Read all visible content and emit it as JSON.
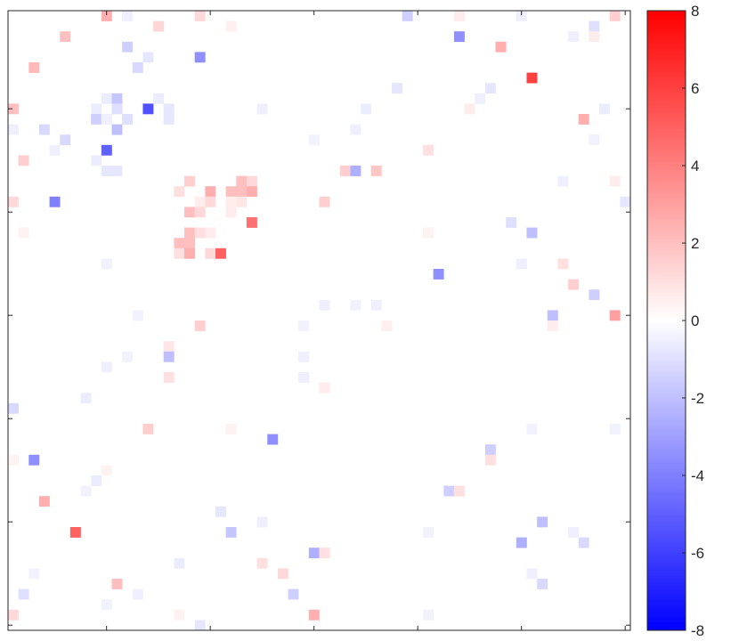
{
  "chart_data": {
    "type": "heatmap",
    "title": "",
    "xlabel": "",
    "ylabel": "",
    "grid": false,
    "rows": 60,
    "cols": 60,
    "color_scale": {
      "min": -8,
      "max": 8,
      "low_color": "#0000ff",
      "mid_color": "#ffffff",
      "high_color": "#ff0000",
      "ticks": [
        8,
        6,
        4,
        2,
        0,
        -2,
        -4,
        -6,
        -8
      ],
      "tick_labels": [
        "8",
        "6",
        "4",
        "2",
        "0",
        "-2",
        "-4",
        "-6",
        "-8"
      ]
    },
    "x_tick_positions": [
      10,
      20,
      30,
      40,
      50,
      60
    ],
    "y_tick_positions": [
      10,
      20,
      30,
      40,
      50,
      60
    ],
    "cells": [
      {
        "row": 1,
        "col": 10,
        "value": 2.5
      },
      {
        "row": 1,
        "col": 12,
        "value": -0.5
      },
      {
        "row": 1,
        "col": 19,
        "value": 1.2
      },
      {
        "row": 1,
        "col": 39,
        "value": -1.5
      },
      {
        "row": 1,
        "col": 44,
        "value": 0.6
      },
      {
        "row": 1,
        "col": 50,
        "value": -0.5
      },
      {
        "row": 1,
        "col": 59,
        "value": 1.5
      },
      {
        "row": 2,
        "col": 15,
        "value": 1.3
      },
      {
        "row": 2,
        "col": 22,
        "value": 0.5
      },
      {
        "row": 2,
        "col": 57,
        "value": -1.0
      },
      {
        "row": 3,
        "col": 6,
        "value": 2.0
      },
      {
        "row": 3,
        "col": 44,
        "value": -3.5
      },
      {
        "row": 3,
        "col": 55,
        "value": -0.5
      },
      {
        "row": 3,
        "col": 57,
        "value": 0.6
      },
      {
        "row": 4,
        "col": 12,
        "value": -1.5
      },
      {
        "row": 4,
        "col": 48,
        "value": 2.5
      },
      {
        "row": 5,
        "col": 14,
        "value": -0.8
      },
      {
        "row": 5,
        "col": 19,
        "value": -3.5
      },
      {
        "row": 6,
        "col": 3,
        "value": 2.2
      },
      {
        "row": 6,
        "col": 13,
        "value": -1.2
      },
      {
        "row": 7,
        "col": 51,
        "value": 6.0
      },
      {
        "row": 8,
        "col": 38,
        "value": -0.8
      },
      {
        "row": 8,
        "col": 47,
        "value": -0.8
      },
      {
        "row": 9,
        "col": 10,
        "value": -0.6
      },
      {
        "row": 9,
        "col": 11,
        "value": -1.8
      },
      {
        "row": 9,
        "col": 15,
        "value": -0.6
      },
      {
        "row": 9,
        "col": 46,
        "value": -0.5
      },
      {
        "row": 10,
        "col": 1,
        "value": 2.0
      },
      {
        "row": 10,
        "col": 9,
        "value": -0.6
      },
      {
        "row": 10,
        "col": 11,
        "value": -1.0
      },
      {
        "row": 10,
        "col": 14,
        "value": -5.5
      },
      {
        "row": 10,
        "col": 16,
        "value": -0.8
      },
      {
        "row": 10,
        "col": 25,
        "value": -0.5
      },
      {
        "row": 10,
        "col": 35,
        "value": -0.6
      },
      {
        "row": 10,
        "col": 45,
        "value": 0.6
      },
      {
        "row": 10,
        "col": 58,
        "value": -0.6
      },
      {
        "row": 11,
        "col": 9,
        "value": -1.5
      },
      {
        "row": 11,
        "col": 10,
        "value": -0.5
      },
      {
        "row": 11,
        "col": 12,
        "value": -1.0
      },
      {
        "row": 11,
        "col": 16,
        "value": -0.8
      },
      {
        "row": 11,
        "col": 56,
        "value": 2.5
      },
      {
        "row": 12,
        "col": 1,
        "value": -0.5
      },
      {
        "row": 12,
        "col": 4,
        "value": -1.2
      },
      {
        "row": 12,
        "col": 11,
        "value": -2.0
      },
      {
        "row": 12,
        "col": 34,
        "value": -0.5
      },
      {
        "row": 13,
        "col": 6,
        "value": -1.2
      },
      {
        "row": 13,
        "col": 30,
        "value": -0.4
      },
      {
        "row": 13,
        "col": 57,
        "value": -0.4
      },
      {
        "row": 14,
        "col": 5,
        "value": -0.5
      },
      {
        "row": 14,
        "col": 10,
        "value": -5.0
      },
      {
        "row": 14,
        "col": 41,
        "value": 1.0
      },
      {
        "row": 15,
        "col": 2,
        "value": 1.5
      },
      {
        "row": 15,
        "col": 9,
        "value": -0.6
      },
      {
        "row": 16,
        "col": 10,
        "value": -0.8
      },
      {
        "row": 16,
        "col": 11,
        "value": -0.8
      },
      {
        "row": 16,
        "col": 33,
        "value": 1.5
      },
      {
        "row": 16,
        "col": 34,
        "value": -2.5
      },
      {
        "row": 16,
        "col": 36,
        "value": 1.8
      },
      {
        "row": 17,
        "col": 18,
        "value": 1.5
      },
      {
        "row": 17,
        "col": 23,
        "value": 2.0
      },
      {
        "row": 17,
        "col": 24,
        "value": 1.2
      },
      {
        "row": 17,
        "col": 54,
        "value": -0.5
      },
      {
        "row": 17,
        "col": 59,
        "value": 0.6
      },
      {
        "row": 18,
        "col": 17,
        "value": 1.0
      },
      {
        "row": 18,
        "col": 20,
        "value": 2.5
      },
      {
        "row": 18,
        "col": 22,
        "value": 2.0
      },
      {
        "row": 18,
        "col": 23,
        "value": 2.0
      },
      {
        "row": 18,
        "col": 24,
        "value": 2.5
      },
      {
        "row": 19,
        "col": 1,
        "value": 1.2
      },
      {
        "row": 19,
        "col": 5,
        "value": -4.0
      },
      {
        "row": 19,
        "col": 19,
        "value": 0.6
      },
      {
        "row": 19,
        "col": 20,
        "value": 1.2
      },
      {
        "row": 19,
        "col": 22,
        "value": 0.6
      },
      {
        "row": 19,
        "col": 23,
        "value": 0.8
      },
      {
        "row": 19,
        "col": 31,
        "value": 1.5
      },
      {
        "row": 19,
        "col": 60,
        "value": -0.8
      },
      {
        "row": 20,
        "col": 18,
        "value": 2.0
      },
      {
        "row": 20,
        "col": 19,
        "value": 1.2
      },
      {
        "row": 20,
        "col": 22,
        "value": 0.6
      },
      {
        "row": 21,
        "col": 24,
        "value": 4.5
      },
      {
        "row": 21,
        "col": 49,
        "value": -1.0
      },
      {
        "row": 22,
        "col": 2,
        "value": 0.4
      },
      {
        "row": 22,
        "col": 18,
        "value": 2.0
      },
      {
        "row": 22,
        "col": 19,
        "value": 1.0
      },
      {
        "row": 22,
        "col": 20,
        "value": 0.6
      },
      {
        "row": 22,
        "col": 41,
        "value": 0.4
      },
      {
        "row": 22,
        "col": 51,
        "value": -2.0
      },
      {
        "row": 23,
        "col": 17,
        "value": 2.0
      },
      {
        "row": 23,
        "col": 18,
        "value": 2.0
      },
      {
        "row": 24,
        "col": 17,
        "value": 1.0
      },
      {
        "row": 24,
        "col": 18,
        "value": 2.5
      },
      {
        "row": 24,
        "col": 20,
        "value": 1.2
      },
      {
        "row": 24,
        "col": 21,
        "value": 5.0
      },
      {
        "row": 25,
        "col": 10,
        "value": -0.4
      },
      {
        "row": 25,
        "col": 50,
        "value": -0.5
      },
      {
        "row": 25,
        "col": 54,
        "value": 1.0
      },
      {
        "row": 26,
        "col": 42,
        "value": -3.5
      },
      {
        "row": 27,
        "col": 55,
        "value": 1.5
      },
      {
        "row": 28,
        "col": 57,
        "value": -1.5
      },
      {
        "row": 29,
        "col": 31,
        "value": -0.5
      },
      {
        "row": 29,
        "col": 34,
        "value": -0.4
      },
      {
        "row": 29,
        "col": 36,
        "value": -0.5
      },
      {
        "row": 30,
        "col": 13,
        "value": -0.4
      },
      {
        "row": 30,
        "col": 53,
        "value": -2.0
      },
      {
        "row": 30,
        "col": 59,
        "value": 3.0
      },
      {
        "row": 31,
        "col": 19,
        "value": 1.5
      },
      {
        "row": 31,
        "col": 29,
        "value": -0.4
      },
      {
        "row": 31,
        "col": 37,
        "value": 0.5
      },
      {
        "row": 31,
        "col": 53,
        "value": 0.6
      },
      {
        "row": 33,
        "col": 16,
        "value": 0.8
      },
      {
        "row": 34,
        "col": 12,
        "value": -0.4
      },
      {
        "row": 34,
        "col": 16,
        "value": -2.0
      },
      {
        "row": 34,
        "col": 29,
        "value": -0.5
      },
      {
        "row": 35,
        "col": 10,
        "value": -0.5
      },
      {
        "row": 36,
        "col": 16,
        "value": 1.0
      },
      {
        "row": 36,
        "col": 29,
        "value": -0.5
      },
      {
        "row": 37,
        "col": 31,
        "value": 0.6
      },
      {
        "row": 38,
        "col": 8,
        "value": -0.6
      },
      {
        "row": 39,
        "col": 1,
        "value": -1.2
      },
      {
        "row": 41,
        "col": 14,
        "value": 1.5
      },
      {
        "row": 41,
        "col": 22,
        "value": 0.4
      },
      {
        "row": 41,
        "col": 51,
        "value": -0.4
      },
      {
        "row": 41,
        "col": 59,
        "value": -0.4
      },
      {
        "row": 42,
        "col": 26,
        "value": -3.5
      },
      {
        "row": 43,
        "col": 47,
        "value": -1.5
      },
      {
        "row": 44,
        "col": 1,
        "value": 0.4
      },
      {
        "row": 44,
        "col": 3,
        "value": -3.5
      },
      {
        "row": 44,
        "col": 47,
        "value": 1.0
      },
      {
        "row": 45,
        "col": 10,
        "value": 0.4
      },
      {
        "row": 46,
        "col": 9,
        "value": -0.6
      },
      {
        "row": 47,
        "col": 8,
        "value": -0.4
      },
      {
        "row": 47,
        "col": 43,
        "value": -1.5
      },
      {
        "row": 47,
        "col": 44,
        "value": 1.0
      },
      {
        "row": 48,
        "col": 4,
        "value": 2.5
      },
      {
        "row": 49,
        "col": 21,
        "value": -0.8
      },
      {
        "row": 50,
        "col": 25,
        "value": -0.5
      },
      {
        "row": 50,
        "col": 52,
        "value": -2.0
      },
      {
        "row": 51,
        "col": 7,
        "value": 5.0
      },
      {
        "row": 51,
        "col": 22,
        "value": -1.8
      },
      {
        "row": 51,
        "col": 41,
        "value": -0.4
      },
      {
        "row": 51,
        "col": 55,
        "value": -0.5
      },
      {
        "row": 52,
        "col": 50,
        "value": -2.5
      },
      {
        "row": 52,
        "col": 56,
        "value": -1.2
      },
      {
        "row": 53,
        "col": 30,
        "value": -2.5
      },
      {
        "row": 53,
        "col": 31,
        "value": 1.0
      },
      {
        "row": 54,
        "col": 17,
        "value": -0.6
      },
      {
        "row": 54,
        "col": 25,
        "value": 1.0
      },
      {
        "row": 55,
        "col": 3,
        "value": -0.4
      },
      {
        "row": 55,
        "col": 27,
        "value": 1.2
      },
      {
        "row": 55,
        "col": 51,
        "value": -0.5
      },
      {
        "row": 56,
        "col": 11,
        "value": 2.0
      },
      {
        "row": 56,
        "col": 52,
        "value": -1.2
      },
      {
        "row": 57,
        "col": 2,
        "value": -1.0
      },
      {
        "row": 57,
        "col": 13,
        "value": -0.5
      },
      {
        "row": 57,
        "col": 28,
        "value": -1.5
      },
      {
        "row": 58,
        "col": 10,
        "value": -0.4
      },
      {
        "row": 59,
        "col": 1,
        "value": 1.2
      },
      {
        "row": 59,
        "col": 17,
        "value": 0.4
      },
      {
        "row": 59,
        "col": 30,
        "value": 2.5
      },
      {
        "row": 59,
        "col": 41,
        "value": -0.4
      },
      {
        "row": 60,
        "col": 19,
        "value": -0.8
      }
    ]
  }
}
